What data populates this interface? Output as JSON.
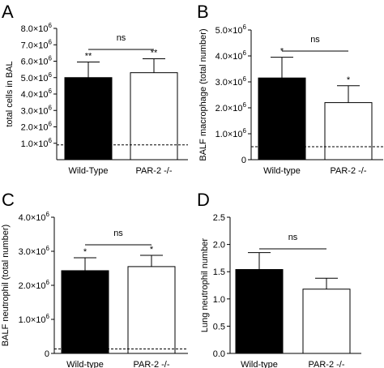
{
  "chart_data": [
    {
      "panel": "A",
      "type": "bar",
      "ylabel": "total cells in BAL",
      "categories": [
        "Wild-Type",
        "PAR-2 -/-"
      ],
      "values": [
        5000000,
        5300000
      ],
      "errors": [
        950000,
        850000
      ],
      "bar_fill": [
        "#000000",
        "#ffffff"
      ],
      "significance": [
        "**",
        "**"
      ],
      "comparison": "ns",
      "baseline": 900000,
      "ylim": [
        0,
        8000000
      ],
      "yticks": [
        {
          "v": 1000000,
          "m": "1.0×10",
          "e": "6"
        },
        {
          "v": 2000000,
          "m": "2.0×10",
          "e": "6"
        },
        {
          "v": 3000000,
          "m": "3.0×10",
          "e": "6"
        },
        {
          "v": 4000000,
          "m": "4.0×10",
          "e": "6"
        },
        {
          "v": 5000000,
          "m": "5.0×10",
          "e": "6"
        },
        {
          "v": 6000000,
          "m": "6.0×10",
          "e": "6"
        },
        {
          "v": 7000000,
          "m": "7.0×10",
          "e": "6"
        },
        {
          "v": 8000000,
          "m": "8.0×10",
          "e": "6"
        }
      ]
    },
    {
      "panel": "B",
      "type": "bar",
      "ylabel": "BALF macrophage (total number)",
      "categories": [
        "Wild-type",
        "PAR-2 -/-"
      ],
      "values": [
        3150000,
        2200000
      ],
      "errors": [
        800000,
        650000
      ],
      "bar_fill": [
        "#000000",
        "#ffffff"
      ],
      "significance": [
        "*",
        "*"
      ],
      "comparison": "ns",
      "baseline": 500000,
      "ylim": [
        0,
        5000000
      ],
      "yticks": [
        {
          "v": 0,
          "m": "0",
          "e": ""
        },
        {
          "v": 1000000,
          "m": "1.0×10",
          "e": "6"
        },
        {
          "v": 2000000,
          "m": "2.0×10",
          "e": "6"
        },
        {
          "v": 3000000,
          "m": "3.0×10",
          "e": "6"
        },
        {
          "v": 4000000,
          "m": "4.0×10",
          "e": "6"
        },
        {
          "v": 5000000,
          "m": "5.0×10",
          "e": "6"
        }
      ]
    },
    {
      "panel": "C",
      "type": "bar",
      "ylabel": "BALF neutrophil (total number)",
      "categories": [
        "Wild-type",
        "PAR-2 -/-"
      ],
      "values": [
        2430000,
        2550000
      ],
      "errors": [
        380000,
        330000
      ],
      "bar_fill": [
        "#000000",
        "#ffffff"
      ],
      "significance": [
        "*",
        "*"
      ],
      "comparison": "ns",
      "baseline": 130000,
      "ylim": [
        0,
        4000000
      ],
      "yticks": [
        {
          "v": 0,
          "m": "0",
          "e": ""
        },
        {
          "v": 1000000,
          "m": "1.0×10",
          "e": "6"
        },
        {
          "v": 2000000,
          "m": "2.0×10",
          "e": "6"
        },
        {
          "v": 3000000,
          "m": "3.0×10",
          "e": "6"
        },
        {
          "v": 4000000,
          "m": "4.0×10",
          "e": "6"
        }
      ]
    },
    {
      "panel": "D",
      "type": "bar",
      "ylabel": "Lung neutrophil number",
      "categories": [
        "Wild-type",
        "PAR-2 -/-"
      ],
      "values": [
        1.54,
        1.18
      ],
      "errors": [
        0.31,
        0.2
      ],
      "bar_fill": [
        "#000000",
        "#ffffff"
      ],
      "significance": [
        "",
        ""
      ],
      "comparison": "ns",
      "baseline": null,
      "ylim": [
        0,
        2.5
      ],
      "yticks": [
        {
          "v": 0,
          "m": "0.0",
          "e": ""
        },
        {
          "v": 0.5,
          "m": "0.5",
          "e": ""
        },
        {
          "v": 1,
          "m": "1.0",
          "e": ""
        },
        {
          "v": 1.5,
          "m": "1.5",
          "e": ""
        },
        {
          "v": 2,
          "m": "2.0",
          "e": ""
        },
        {
          "v": 2.5,
          "m": "2.5",
          "e": ""
        }
      ]
    }
  ]
}
